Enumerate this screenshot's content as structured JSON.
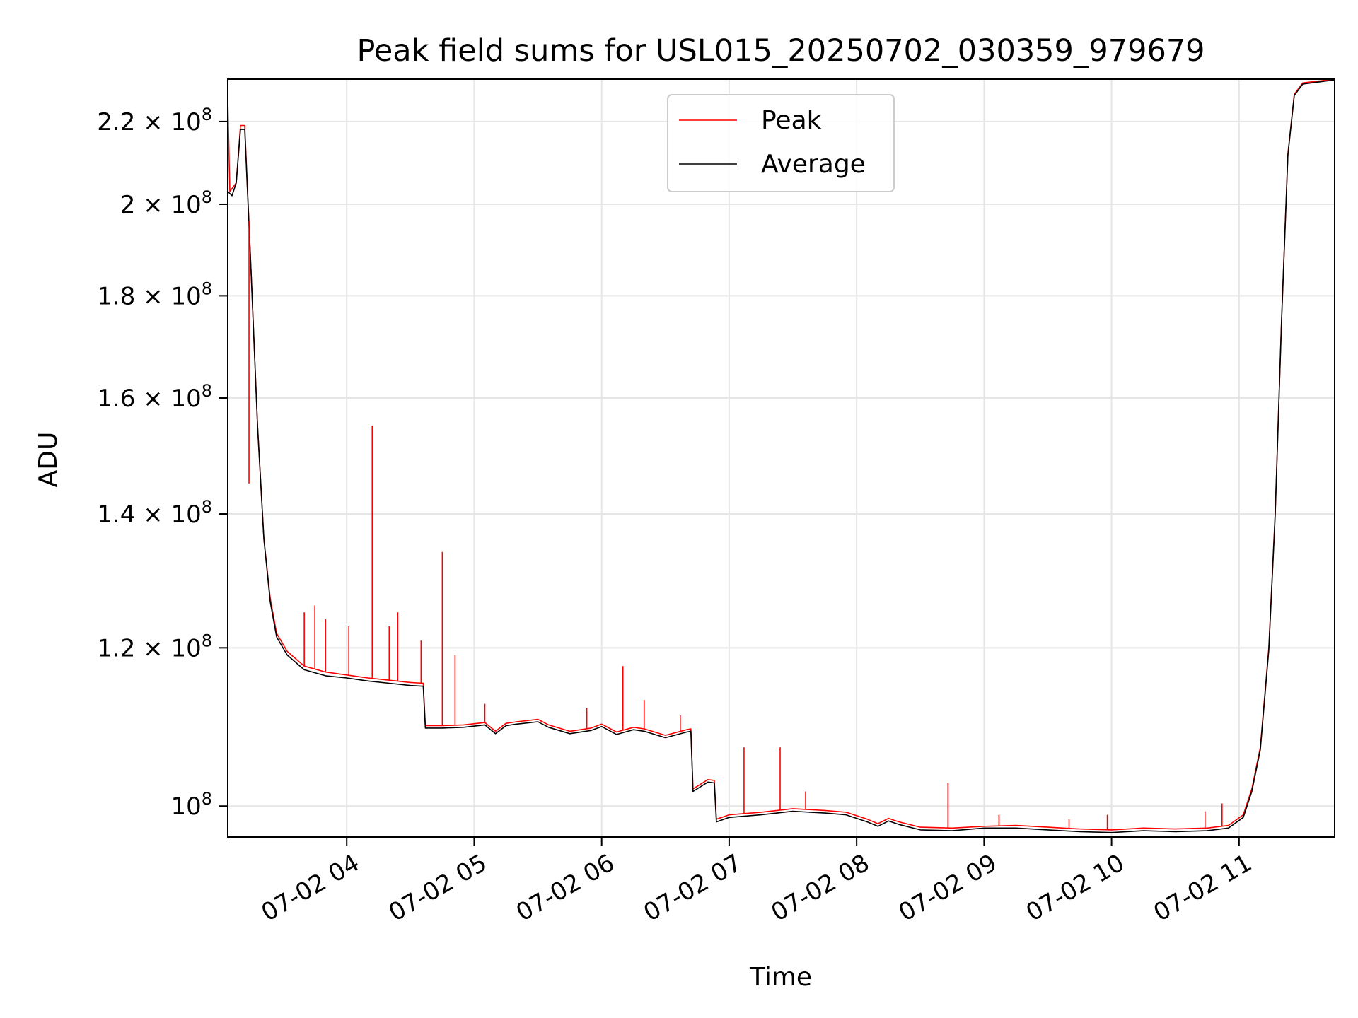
{
  "chart_data": {
    "type": "line",
    "title": "Peak field sums for USL015_20250702_030359_979679",
    "xlabel": "Time",
    "ylabel": "ADU",
    "x_axis_type": "datetime",
    "y_scale": "log",
    "grid": true,
    "legend_position": "top-center",
    "xlim": [
      "2025-07-02 03:04",
      "2025-07-02 11:45"
    ],
    "ylim": [
      96500000,
      231000000
    ],
    "x_ticks": [
      {
        "value": "2025-07-02 04:00",
        "label": "07-02 04"
      },
      {
        "value": "2025-07-02 05:00",
        "label": "07-02 05"
      },
      {
        "value": "2025-07-02 06:00",
        "label": "07-02 06"
      },
      {
        "value": "2025-07-02 07:00",
        "label": "07-02 07"
      },
      {
        "value": "2025-07-02 08:00",
        "label": "07-02 08"
      },
      {
        "value": "2025-07-02 09:00",
        "label": "07-02 09"
      },
      {
        "value": "2025-07-02 10:00",
        "label": "07-02 10"
      },
      {
        "value": "2025-07-02 11:00",
        "label": "07-02 11"
      }
    ],
    "y_ticks": [
      {
        "value": 100000000,
        "mantissa": "10",
        "exponent": "8"
      },
      {
        "value": 120000000,
        "mantissa": "1.2 × 10",
        "exponent": "8"
      },
      {
        "value": 140000000,
        "mantissa": "1.4 × 10",
        "exponent": "8"
      },
      {
        "value": 160000000,
        "mantissa": "1.6 × 10",
        "exponent": "8"
      },
      {
        "value": 180000000,
        "mantissa": "1.8 × 10",
        "exponent": "8"
      },
      {
        "value": 200000000,
        "mantissa": "2 × 10",
        "exponent": "8"
      },
      {
        "value": 220000000,
        "mantissa": "2.2 × 10",
        "exponent": "8"
      }
    ],
    "series": [
      {
        "name": "Peak",
        "color": "#ff0000",
        "points": [
          [
            "2025-07-02 03:04",
            226000000
          ],
          [
            "2025-07-02 03:05",
            203000000
          ],
          [
            "2025-07-02 03:08",
            205000000
          ],
          [
            "2025-07-02 03:10",
            219000000
          ],
          [
            "2025-07-02 03:12",
            219000000
          ],
          [
            "2025-07-02 03:15",
            185000000
          ],
          [
            "2025-07-02 03:18",
            155000000
          ],
          [
            "2025-07-02 03:21",
            136000000
          ],
          [
            "2025-07-02 03:24",
            127000000
          ],
          [
            "2025-07-02 03:27",
            122000000
          ],
          [
            "2025-07-02 03:32",
            119500000
          ],
          [
            "2025-07-02 03:40",
            117500000
          ],
          [
            "2025-07-02 03:50",
            116700000
          ],
          [
            "2025-07-02 04:00",
            116300000
          ],
          [
            "2025-07-02 04:10",
            115900000
          ],
          [
            "2025-07-02 04:20",
            115600000
          ],
          [
            "2025-07-02 04:30",
            115300000
          ],
          [
            "2025-07-02 04:36",
            115200000
          ],
          [
            "2025-07-02 04:37",
            109700000
          ],
          [
            "2025-07-02 04:45",
            109700000
          ],
          [
            "2025-07-02 04:55",
            109800000
          ],
          [
            "2025-07-02 05:05",
            110100000
          ],
          [
            "2025-07-02 05:10",
            109000000
          ],
          [
            "2025-07-02 05:15",
            110000000
          ],
          [
            "2025-07-02 05:20",
            110200000
          ],
          [
            "2025-07-02 05:30",
            110500000
          ],
          [
            "2025-07-02 05:35",
            109800000
          ],
          [
            "2025-07-02 05:45",
            109000000
          ],
          [
            "2025-07-02 05:55",
            109400000
          ],
          [
            "2025-07-02 06:00",
            109900000
          ],
          [
            "2025-07-02 06:07",
            108900000
          ],
          [
            "2025-07-02 06:15",
            109500000
          ],
          [
            "2025-07-02 06:20",
            109300000
          ],
          [
            "2025-07-02 06:30",
            108500000
          ],
          [
            "2025-07-02 06:40",
            109200000
          ],
          [
            "2025-07-02 06:42",
            109300000
          ],
          [
            "2025-07-02 06:43",
            102000000
          ],
          [
            "2025-07-02 06:50",
            103100000
          ],
          [
            "2025-07-02 06:53",
            103000000
          ],
          [
            "2025-07-02 06:54",
            98500000
          ],
          [
            "2025-07-02 07:00",
            99000000
          ],
          [
            "2025-07-02 07:15",
            99300000
          ],
          [
            "2025-07-02 07:30",
            99700000
          ],
          [
            "2025-07-02 07:45",
            99500000
          ],
          [
            "2025-07-02 07:55",
            99300000
          ],
          [
            "2025-07-02 08:05",
            98500000
          ],
          [
            "2025-07-02 08:10",
            98000000
          ],
          [
            "2025-07-02 08:15",
            98600000
          ],
          [
            "2025-07-02 08:20",
            98200000
          ],
          [
            "2025-07-02 08:30",
            97600000
          ],
          [
            "2025-07-02 08:45",
            97500000
          ],
          [
            "2025-07-02 09:00",
            97700000
          ],
          [
            "2025-07-02 09:15",
            97800000
          ],
          [
            "2025-07-02 09:30",
            97600000
          ],
          [
            "2025-07-02 09:45",
            97400000
          ],
          [
            "2025-07-02 10:00",
            97300000
          ],
          [
            "2025-07-02 10:15",
            97500000
          ],
          [
            "2025-07-02 10:30",
            97400000
          ],
          [
            "2025-07-02 10:45",
            97500000
          ],
          [
            "2025-07-02 10:55",
            97800000
          ],
          [
            "2025-07-02 11:02",
            99000000
          ],
          [
            "2025-07-02 11:06",
            102000000
          ],
          [
            "2025-07-02 11:10",
            107000000
          ],
          [
            "2025-07-02 11:14",
            120000000
          ],
          [
            "2025-07-02 11:17",
            140000000
          ],
          [
            "2025-07-02 11:20",
            175000000
          ],
          [
            "2025-07-02 11:23",
            212000000
          ],
          [
            "2025-07-02 11:26",
            227000000
          ],
          [
            "2025-07-02 11:30",
            230000000
          ],
          [
            "2025-07-02 11:45",
            231000000
          ]
        ]
      },
      {
        "name": "Average",
        "color": "#000000",
        "points": [
          [
            "2025-07-02 03:04",
            203000000
          ],
          [
            "2025-07-02 03:06",
            202000000
          ],
          [
            "2025-07-02 03:08",
            205000000
          ],
          [
            "2025-07-02 03:10",
            218000000
          ],
          [
            "2025-07-02 03:12",
            218000000
          ],
          [
            "2025-07-02 03:15",
            185000000
          ],
          [
            "2025-07-02 03:18",
            155000000
          ],
          [
            "2025-07-02 03:21",
            136000000
          ],
          [
            "2025-07-02 03:24",
            126500000
          ],
          [
            "2025-07-02 03:27",
            121500000
          ],
          [
            "2025-07-02 03:32",
            119000000
          ],
          [
            "2025-07-02 03:40",
            117000000
          ],
          [
            "2025-07-02 03:50",
            116200000
          ],
          [
            "2025-07-02 04:00",
            115900000
          ],
          [
            "2025-07-02 04:10",
            115500000
          ],
          [
            "2025-07-02 04:20",
            115200000
          ],
          [
            "2025-07-02 04:30",
            114900000
          ],
          [
            "2025-07-02 04:36",
            114800000
          ],
          [
            "2025-07-02 04:37",
            109400000
          ],
          [
            "2025-07-02 04:45",
            109400000
          ],
          [
            "2025-07-02 04:55",
            109500000
          ],
          [
            "2025-07-02 05:05",
            109800000
          ],
          [
            "2025-07-02 05:10",
            108700000
          ],
          [
            "2025-07-02 05:15",
            109700000
          ],
          [
            "2025-07-02 05:20",
            109900000
          ],
          [
            "2025-07-02 05:30",
            110200000
          ],
          [
            "2025-07-02 05:35",
            109500000
          ],
          [
            "2025-07-02 05:45",
            108700000
          ],
          [
            "2025-07-02 05:55",
            109100000
          ],
          [
            "2025-07-02 06:00",
            109600000
          ],
          [
            "2025-07-02 06:07",
            108600000
          ],
          [
            "2025-07-02 06:15",
            109200000
          ],
          [
            "2025-07-02 06:20",
            109000000
          ],
          [
            "2025-07-02 06:30",
            108200000
          ],
          [
            "2025-07-02 06:40",
            108900000
          ],
          [
            "2025-07-02 06:42",
            109000000
          ],
          [
            "2025-07-02 06:43",
            101700000
          ],
          [
            "2025-07-02 06:50",
            102800000
          ],
          [
            "2025-07-02 06:53",
            102700000
          ],
          [
            "2025-07-02 06:54",
            98200000
          ],
          [
            "2025-07-02 07:00",
            98700000
          ],
          [
            "2025-07-02 07:15",
            99000000
          ],
          [
            "2025-07-02 07:30",
            99400000
          ],
          [
            "2025-07-02 07:45",
            99200000
          ],
          [
            "2025-07-02 07:55",
            99000000
          ],
          [
            "2025-07-02 08:05",
            98200000
          ],
          [
            "2025-07-02 08:10",
            97700000
          ],
          [
            "2025-07-02 08:15",
            98300000
          ],
          [
            "2025-07-02 08:20",
            97900000
          ],
          [
            "2025-07-02 08:30",
            97300000
          ],
          [
            "2025-07-02 08:45",
            97200000
          ],
          [
            "2025-07-02 09:00",
            97500000
          ],
          [
            "2025-07-02 09:15",
            97500000
          ],
          [
            "2025-07-02 09:30",
            97300000
          ],
          [
            "2025-07-02 09:45",
            97100000
          ],
          [
            "2025-07-02 10:00",
            97000000
          ],
          [
            "2025-07-02 10:15",
            97200000
          ],
          [
            "2025-07-02 10:30",
            97100000
          ],
          [
            "2025-07-02 10:45",
            97200000
          ],
          [
            "2025-07-02 10:55",
            97500000
          ],
          [
            "2025-07-02 11:02",
            98700000
          ],
          [
            "2025-07-02 11:06",
            101700000
          ],
          [
            "2025-07-02 11:10",
            106700000
          ],
          [
            "2025-07-02 11:14",
            119700000
          ],
          [
            "2025-07-02 11:17",
            139700000
          ],
          [
            "2025-07-02 11:20",
            174700000
          ],
          [
            "2025-07-02 11:23",
            211700000
          ],
          [
            "2025-07-02 11:26",
            226700000
          ],
          [
            "2025-07-02 11:30",
            229700000
          ],
          [
            "2025-07-02 11:45",
            230800000
          ]
        ]
      }
    ],
    "spikes": {
      "series": "Peak",
      "points": [
        [
          "2025-07-02 03:14",
          145000000
        ],
        [
          "2025-07-02 03:40",
          125000000
        ],
        [
          "2025-07-02 03:45",
          126000000
        ],
        [
          "2025-07-02 03:50",
          124000000
        ],
        [
          "2025-07-02 04:01",
          123000000
        ],
        [
          "2025-07-02 04:12",
          155000000
        ],
        [
          "2025-07-02 04:20",
          123000000
        ],
        [
          "2025-07-02 04:24",
          125000000
        ],
        [
          "2025-07-02 04:35",
          121000000
        ],
        [
          "2025-07-02 04:45",
          134000000
        ],
        [
          "2025-07-02 04:51",
          119000000
        ],
        [
          "2025-07-02 05:05",
          112500000
        ],
        [
          "2025-07-02 05:53",
          112000000
        ],
        [
          "2025-07-02 06:10",
          117500000
        ],
        [
          "2025-07-02 06:20",
          113000000
        ],
        [
          "2025-07-02 06:37",
          111000000
        ],
        [
          "2025-07-02 07:07",
          107000000
        ],
        [
          "2025-07-02 07:24",
          107000000
        ],
        [
          "2025-07-02 07:36",
          101700000
        ],
        [
          "2025-07-02 08:43",
          102700000
        ],
        [
          "2025-07-02 09:07",
          99000000
        ],
        [
          "2025-07-02 09:40",
          98500000
        ],
        [
          "2025-07-02 09:58",
          99000000
        ],
        [
          "2025-07-02 10:44",
          99400000
        ],
        [
          "2025-07-02 10:52",
          100300000
        ]
      ]
    },
    "legend": [
      {
        "name": "Peak",
        "color": "#ff0000"
      },
      {
        "name": "Average",
        "color": "#000000"
      }
    ]
  }
}
